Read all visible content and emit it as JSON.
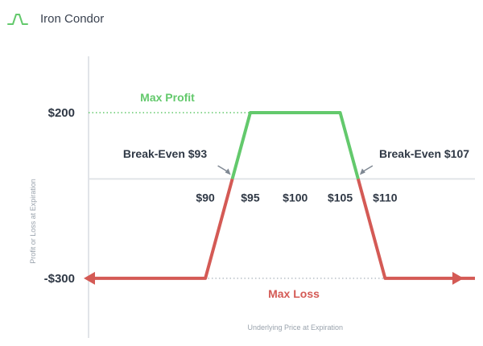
{
  "header": {
    "title": "Iron Condor",
    "icon": "bell-curve-icon"
  },
  "chart_data": {
    "type": "line",
    "title": "",
    "xlabel": "Underlying Price at Expiration",
    "ylabel": "Profit or Loss at Expiration",
    "x_ticks": [
      {
        "value": 90,
        "label": "$90"
      },
      {
        "value": 95,
        "label": "$95"
      },
      {
        "value": 100,
        "label": "$100"
      },
      {
        "value": 105,
        "label": "$105"
      },
      {
        "value": 110,
        "label": "$110"
      }
    ],
    "y_ticks": [
      {
        "value": 200,
        "label": "$200"
      },
      {
        "value": -300,
        "label": "-$300"
      }
    ],
    "xlim": [
      77,
      120
    ],
    "ylim": [
      -480,
      370
    ],
    "series": [
      {
        "points": [
          [
            77,
            -300
          ],
          [
            90,
            -300
          ],
          [
            93,
            0
          ],
          [
            95,
            200
          ],
          [
            105,
            200
          ],
          [
            107,
            0
          ],
          [
            110,
            -300
          ],
          [
            120,
            -300
          ]
        ],
        "profit_color": "#63c96c",
        "loss_color": "#d45a55"
      }
    ],
    "annotations": {
      "max_profit": {
        "text": "Max Profit",
        "value": 200,
        "color": "#63c96c"
      },
      "max_loss": {
        "text": "Max Loss",
        "value": -300,
        "color": "#d45a55"
      },
      "break_even_low": {
        "text": "Break-Even $93",
        "value": 93
      },
      "break_even_high": {
        "text": "Break-Even $107",
        "value": 107
      }
    },
    "colors": {
      "axis": "#e1e4e8",
      "text": "#2f3845",
      "dotted_profit": "#63c96c",
      "dotted_loss": "#aab2bb",
      "arrow": "#7f8893"
    }
  }
}
